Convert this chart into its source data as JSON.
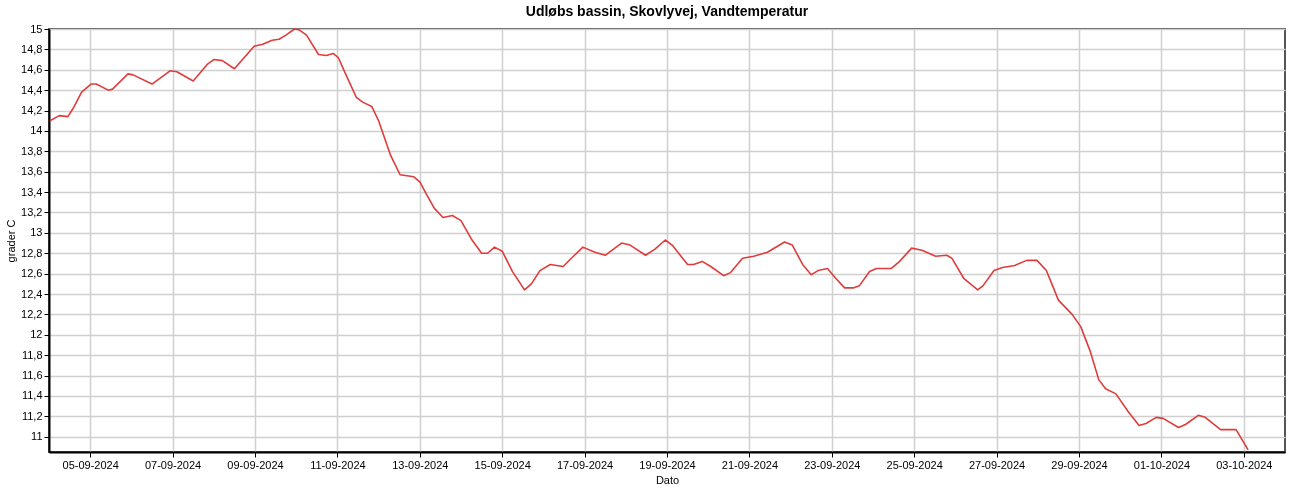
{
  "chart_data": {
    "type": "line",
    "title": "Udløbs bassin, Skovlyvej, Vandtemperatur",
    "xlabel": "Dato",
    "ylabel": "grader C",
    "x": [
      "2024-09-04T00:30",
      "2024-09-04T06:00",
      "2024-09-04T11:00",
      "2024-09-04T14:00",
      "2024-09-04T19:00",
      "2024-09-05T00:30",
      "2024-09-05T03:30",
      "2024-09-05T10:30",
      "2024-09-05T13:00",
      "2024-09-05T22:00",
      "2024-09-06T01:00",
      "2024-09-06T12:00",
      "2024-09-06T22:30",
      "2024-09-07T02:30",
      "2024-09-07T12:00",
      "2024-09-07T20:00",
      "2024-09-08T00:00",
      "2024-09-08T05:00",
      "2024-09-08T12:00",
      "2024-09-08T23:30",
      "2024-09-09T04:30",
      "2024-09-09T10:00",
      "2024-09-09T14:00",
      "2024-09-09T18:00",
      "2024-09-09T23:00",
      "2024-09-10T02:00",
      "2024-09-10T06:00",
      "2024-09-10T13:00",
      "2024-09-10T17:30",
      "2024-09-10T21:30",
      "2024-09-11T00:30",
      "2024-09-11T04:30",
      "2024-09-11T11:00",
      "2024-09-11T15:00",
      "2024-09-11T20:00",
      "2024-09-12T00:00",
      "2024-09-12T07:00",
      "2024-09-12T12:30",
      "2024-09-12T16:30",
      "2024-09-12T20:30",
      "2024-09-13T00:00",
      "2024-09-13T03:30",
      "2024-09-13T08:30",
      "2024-09-13T13:30",
      "2024-09-13T19:00",
      "2024-09-14T00:00",
      "2024-09-14T06:00",
      "2024-09-14T12:00",
      "2024-09-14T15:30",
      "2024-09-14T19:30",
      "2024-09-15T00:00",
      "2024-09-15T06:00",
      "2024-09-15T13:00",
      "2024-09-15T17:00",
      "2024-09-15T22:00",
      "2024-09-16T04:00",
      "2024-09-16T11:30",
      "2024-09-16T17:30",
      "2024-09-16T23:00",
      "2024-09-17T06:00",
      "2024-09-17T12:00",
      "2024-09-17T21:30",
      "2024-09-18T02:30",
      "2024-09-18T11:30",
      "2024-09-18T17:00",
      "2024-09-18T23:00",
      "2024-09-19T03:00",
      "2024-09-19T12:00",
      "2024-09-19T15:30",
      "2024-09-19T20:30",
      "2024-09-20T01:30",
      "2024-09-20T09:00",
      "2024-09-20T13:00",
      "2024-09-20T20:00",
      "2024-09-21T02:30",
      "2024-09-21T10:30",
      "2024-09-21T20:30",
      "2024-09-22T01:00",
      "2024-09-22T07:00",
      "2024-09-22T12:00",
      "2024-09-22T16:00",
      "2024-09-22T21:30",
      "2024-09-23T02:30",
      "2024-09-23T07:30",
      "2024-09-23T12:30",
      "2024-09-23T16:00",
      "2024-09-23T22:00",
      "2024-09-24T02:00",
      "2024-09-24T10:30",
      "2024-09-24T15:30",
      "2024-09-24T22:30",
      "2024-09-25T04:30",
      "2024-09-25T12:30",
      "2024-09-25T19:00",
      "2024-09-25T22:00",
      "2024-09-26T05:00",
      "2024-09-26T13:00",
      "2024-09-26T16:00",
      "2024-09-26T22:30",
      "2024-09-27T03:30",
      "2024-09-27T10:30",
      "2024-09-27T17:30",
      "2024-09-27T23:30",
      "2024-09-28T05:00",
      "2024-09-28T12:00",
      "2024-09-28T20:00",
      "2024-09-29T01:00",
      "2024-09-29T06:30",
      "2024-09-29T11:30",
      "2024-09-29T15:30",
      "2024-09-29T21:30",
      "2024-09-30T04:30",
      "2024-09-30T11:00",
      "2024-09-30T15:00",
      "2024-09-30T21:00",
      "2024-10-01T01:00",
      "2024-10-01T10:00",
      "2024-10-01T14:00",
      "2024-10-01T21:30",
      "2024-10-02T01:30",
      "2024-10-02T10:30",
      "2024-10-02T14:30",
      "2024-10-02T19:30",
      "2024-10-03T02:30"
    ],
    "series": [
      {
        "color": "#e03c3c",
        "values": [
          14.1,
          14.15,
          14.14,
          14.22,
          14.38,
          14.46,
          14.46,
          14.4,
          14.41,
          14.56,
          14.55,
          14.46,
          14.59,
          14.58,
          14.49,
          14.65,
          14.7,
          14.69,
          14.61,
          14.83,
          14.85,
          14.89,
          14.9,
          14.94,
          15.0,
          14.99,
          14.94,
          14.75,
          14.74,
          14.76,
          14.72,
          14.57,
          14.33,
          14.28,
          14.24,
          14.1,
          13.76,
          13.57,
          13.56,
          13.55,
          13.5,
          13.39,
          13.24,
          13.15,
          13.17,
          13.12,
          12.94,
          12.8,
          12.8,
          12.86,
          12.82,
          12.62,
          12.44,
          12.5,
          12.63,
          12.69,
          12.67,
          12.77,
          12.86,
          12.81,
          12.78,
          12.9,
          12.88,
          12.78,
          12.84,
          12.93,
          12.88,
          12.69,
          12.69,
          12.72,
          12.67,
          12.58,
          12.61,
          12.75,
          12.77,
          12.81,
          12.91,
          12.88,
          12.69,
          12.59,
          12.63,
          12.65,
          12.55,
          12.46,
          12.46,
          12.48,
          12.62,
          12.65,
          12.65,
          12.72,
          12.85,
          12.83,
          12.77,
          12.78,
          12.75,
          12.55,
          12.44,
          12.48,
          12.63,
          12.66,
          12.68,
          12.73,
          12.73,
          12.63,
          12.34,
          12.2,
          12.08,
          11.84,
          11.56,
          11.47,
          11.42,
          11.25,
          11.11,
          11.13,
          11.19,
          11.18,
          11.09,
          11.12,
          11.21,
          11.19,
          11.07,
          11.07,
          11.07,
          10.87
        ]
      }
    ],
    "xlim": [
      "2024-09-04T00:00",
      "2024-10-04T00:00"
    ],
    "xticks": [
      {
        "value": "2024-09-05T00:00",
        "label": "05-09-2024"
      },
      {
        "value": "2024-09-07T00:00",
        "label": "07-09-2024"
      },
      {
        "value": "2024-09-09T00:00",
        "label": "09-09-2024"
      },
      {
        "value": "2024-09-11T00:00",
        "label": "11-09-2024"
      },
      {
        "value": "2024-09-13T00:00",
        "label": "13-09-2024"
      },
      {
        "value": "2024-09-15T00:00",
        "label": "15-09-2024"
      },
      {
        "value": "2024-09-17T00:00",
        "label": "17-09-2024"
      },
      {
        "value": "2024-09-19T00:00",
        "label": "19-09-2024"
      },
      {
        "value": "2024-09-21T00:00",
        "label": "21-09-2024"
      },
      {
        "value": "2024-09-23T00:00",
        "label": "23-09-2024"
      },
      {
        "value": "2024-09-25T00:00",
        "label": "25-09-2024"
      },
      {
        "value": "2024-09-27T00:00",
        "label": "27-09-2024"
      },
      {
        "value": "2024-09-29T00:00",
        "label": "29-09-2024"
      },
      {
        "value": "2024-10-01T00:00",
        "label": "01-10-2024"
      },
      {
        "value": "2024-10-03T00:00",
        "label": "03-10-2024"
      }
    ],
    "ylim": [
      10.85,
      15
    ],
    "yticks": [
      {
        "value": 11,
        "label": "11"
      },
      {
        "value": 11.2,
        "label": "11,2"
      },
      {
        "value": 11.4,
        "label": "11,4"
      },
      {
        "value": 11.6,
        "label": "11,6"
      },
      {
        "value": 11.8,
        "label": "11,8"
      },
      {
        "value": 12,
        "label": "12"
      },
      {
        "value": 12.2,
        "label": "12,2"
      },
      {
        "value": 12.4,
        "label": "12,4"
      },
      {
        "value": 12.6,
        "label": "12,6"
      },
      {
        "value": 12.8,
        "label": "12,8"
      },
      {
        "value": 13,
        "label": "13"
      },
      {
        "value": 13.2,
        "label": "13,2"
      },
      {
        "value": 13.4,
        "label": "13,4"
      },
      {
        "value": 13.6,
        "label": "13,6"
      },
      {
        "value": 13.8,
        "label": "13,8"
      },
      {
        "value": 14,
        "label": "14"
      },
      {
        "value": 14.2,
        "label": "14,2"
      },
      {
        "value": 14.4,
        "label": "14,4"
      },
      {
        "value": 14.6,
        "label": "14,6"
      },
      {
        "value": 14.8,
        "label": "14,8"
      },
      {
        "value": 15,
        "label": "15"
      }
    ],
    "grid": true,
    "legend": false,
    "marker": "none",
    "line_style": "solid"
  }
}
